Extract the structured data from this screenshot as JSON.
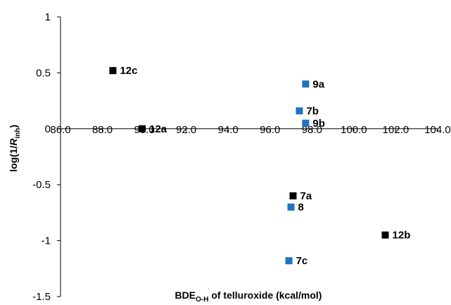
{
  "chart_data": {
    "type": "scatter",
    "title": "",
    "xlabel": {
      "main": "BDE",
      "sub": "O-H",
      "rest": " of telluroxide (kcal/mol)"
    },
    "ylabel": {
      "main": "log(1/",
      "italic": "R",
      "sub": "inh",
      "rest": ")"
    },
    "xlim": [
      86,
      104
    ],
    "ylim": [
      -1.5,
      1
    ],
    "x_axis_crosses_y_at": 0,
    "x_ticks": [
      86,
      88,
      90,
      92,
      94,
      96,
      98,
      100,
      102,
      104
    ],
    "x_tick_labels": [
      "86.0",
      "88.0",
      "90.0",
      "92.0",
      "94.0",
      "96.0",
      "98.0",
      "100.0",
      "102.0",
      "104.0"
    ],
    "y_ticks": [
      1,
      0.5,
      0,
      -0.5,
      -1,
      -1.5
    ],
    "y_tick_labels": [
      "1",
      "0.5",
      "0",
      "-0.5",
      "-1",
      "-1.5"
    ],
    "grid": false,
    "legend": "none",
    "colors": {
      "black": "#000000",
      "blue": "#1F73C1"
    },
    "points": [
      {
        "label": "12c",
        "x": 88.5,
        "y": 0.52,
        "color": "black"
      },
      {
        "label": "12a",
        "x": 89.9,
        "y": 0.0,
        "color": "black"
      },
      {
        "label": "9a",
        "x": 97.7,
        "y": 0.4,
        "color": "blue"
      },
      {
        "label": "7b",
        "x": 97.4,
        "y": 0.16,
        "color": "blue"
      },
      {
        "label": "9b",
        "x": 97.7,
        "y": 0.05,
        "color": "blue"
      },
      {
        "label": "7a",
        "x": 97.1,
        "y": -0.6,
        "color": "black"
      },
      {
        "label": "8",
        "x": 97.0,
        "y": -0.7,
        "color": "blue"
      },
      {
        "label": "12b",
        "x": 101.5,
        "y": -0.95,
        "color": "black"
      },
      {
        "label": "7c",
        "x": 96.9,
        "y": -1.18,
        "color": "blue"
      }
    ]
  }
}
